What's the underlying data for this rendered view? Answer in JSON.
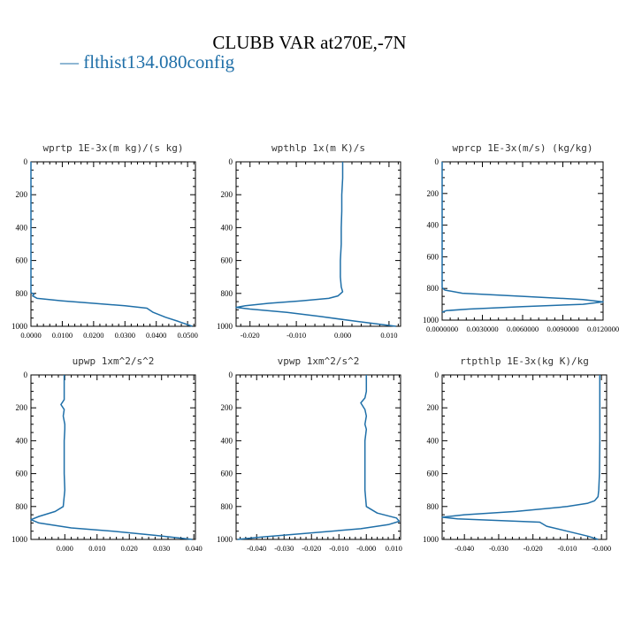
{
  "page": {
    "title": "CLUBB VAR at270E,-7N",
    "legend_label": "flthist134.080config",
    "line_color": "#1f6fa8"
  },
  "chart_data": [
    {
      "type": "line",
      "title": "wprtp  1E-3x(m kg)/(s kg)",
      "xlim": [
        0.0,
        0.0525
      ],
      "ylim": [
        1000,
        0
      ],
      "xticks": [
        0.0,
        0.01,
        0.02,
        0.03,
        0.04,
        0.05
      ],
      "xticklabels": [
        "0.0000",
        "0.0100",
        "0.0200",
        "0.0300",
        "0.0400",
        "0.0500"
      ],
      "yticks": [
        0,
        200,
        400,
        600,
        800,
        1000
      ],
      "series": [
        {
          "x": [
            0.0,
            0.0,
            0.0,
            0.0,
            0.0,
            0.0,
            0.0,
            0.0,
            0.0,
            0.0,
            0.0,
            0.001,
            0.0005,
            0.002,
            0.01,
            0.02,
            0.03,
            0.037,
            0.039,
            0.043,
            0.047,
            0.0515
          ],
          "y": [
            0,
            100,
            200,
            300,
            400,
            500,
            600,
            700,
            750,
            780,
            795,
            805,
            815,
            830,
            845,
            860,
            875,
            890,
            915,
            945,
            970,
            1000
          ]
        }
      ]
    },
    {
      "type": "line",
      "title": "wpthlp  1x(m K)/s",
      "xlim": [
        -0.023,
        0.0125
      ],
      "ylim": [
        1000,
        0
      ],
      "xticks": [
        -0.02,
        -0.01,
        0.0,
        0.01
      ],
      "xticklabels": [
        "-0.020",
        "-0.010",
        "0.000",
        "0.010"
      ],
      "yticks": [
        0,
        200,
        400,
        600,
        800,
        1000
      ],
      "series": [
        {
          "x": [
            0.0,
            0.0,
            -0.0002,
            -0.0002,
            -0.0003,
            -0.0003,
            -0.0005,
            -0.0005,
            -0.0003,
            0.0,
            -0.001,
            -0.003,
            -0.009,
            -0.016,
            -0.021,
            -0.023,
            -0.02,
            -0.012,
            -0.005,
            0.003,
            0.0115
          ],
          "y": [
            0,
            100,
            200,
            300,
            400,
            500,
            600,
            700,
            760,
            790,
            815,
            830,
            845,
            860,
            875,
            885,
            895,
            915,
            940,
            970,
            1000
          ]
        }
      ]
    },
    {
      "type": "line",
      "title": "wprcp  1E-3x(m/s) (kg/kg)",
      "xlim": [
        0.0,
        0.012
      ],
      "ylim": [
        1000,
        0
      ],
      "xticks": [
        0.0,
        0.003,
        0.006,
        0.009,
        0.012
      ],
      "xticklabels": [
        "0.0000000",
        "0.0030000",
        "0.0060000",
        "0.0090000",
        "0.0120000"
      ],
      "yticks": [
        0,
        200,
        400,
        600,
        800,
        1000
      ],
      "series": [
        {
          "x": [
            0.0,
            0.0,
            0.0,
            0.0,
            0.0,
            0.0,
            0.0,
            0.0,
            0.0002,
            0.0015,
            0.006,
            0.0105,
            0.012,
            0.0105,
            0.006,
            0.002,
            0.0003,
            0.0
          ],
          "y": [
            0,
            200,
            400,
            600,
            700,
            760,
            780,
            795,
            810,
            830,
            850,
            870,
            885,
            900,
            915,
            930,
            940,
            950
          ]
        }
      ]
    },
    {
      "type": "line",
      "title": "upwp  1xm^2/s^2",
      "xlim": [
        -0.0105,
        0.0405
      ],
      "ylim": [
        1000,
        0
      ],
      "xticks": [
        0.0,
        0.01,
        0.02,
        0.03,
        0.04
      ],
      "xticklabels": [
        "0.000",
        "0.010",
        "0.020",
        "0.030",
        "0.040"
      ],
      "yticks": [
        0,
        200,
        400,
        600,
        800,
        1000
      ],
      "series": [
        {
          "x": [
            -0.0002,
            -0.0002,
            -0.0002,
            -0.0012,
            -0.0002,
            -0.0005,
            0.0,
            0.0,
            -0.0002,
            -0.0002,
            -0.0002,
            0.0,
            -0.0005,
            -0.003,
            -0.008,
            -0.0105,
            -0.008,
            0.002,
            0.015,
            0.028,
            0.0395
          ],
          "y": [
            0,
            100,
            150,
            180,
            210,
            250,
            300,
            330,
            400,
            500,
            600,
            700,
            800,
            830,
            860,
            880,
            900,
            930,
            950,
            975,
            1000
          ]
        }
      ]
    },
    {
      "type": "line",
      "title": "vpwp  1xm^2/s^2",
      "xlim": [
        -0.0475,
        0.0125
      ],
      "ylim": [
        1000,
        0
      ],
      "xticks": [
        -0.04,
        -0.03,
        -0.02,
        -0.01,
        0.0,
        0.01
      ],
      "xticklabels": [
        "-0.040",
        "-0.030",
        "-0.020",
        "-0.010",
        "-0.000",
        "0.010"
      ],
      "yticks": [
        0,
        200,
        400,
        600,
        800,
        1000
      ],
      "series": [
        {
          "x": [
            0.0,
            0.0,
            -0.0005,
            -0.002,
            -0.0005,
            0.0,
            -0.0005,
            0.0,
            -0.0005,
            -0.0005,
            -0.0005,
            -0.0005,
            0.0,
            0.004,
            0.011,
            0.012,
            0.008,
            -0.002,
            -0.02,
            -0.038,
            -0.047
          ],
          "y": [
            0,
            100,
            140,
            170,
            210,
            250,
            300,
            330,
            400,
            500,
            600,
            700,
            800,
            840,
            870,
            890,
            910,
            935,
            960,
            985,
            1000
          ]
        }
      ]
    },
    {
      "type": "line",
      "title": "rtpthlp  1E-3x(kg K)/kg",
      "xlim": [
        -0.0465,
        0.0015
      ],
      "ylim": [
        1000,
        0
      ],
      "xticks": [
        -0.04,
        -0.03,
        -0.02,
        -0.01,
        0.0
      ],
      "xticklabels": [
        "-0.040",
        "-0.030",
        "-0.020",
        "-0.010",
        "-0.000"
      ],
      "yticks": [
        0,
        200,
        400,
        600,
        800,
        1000
      ],
      "series": [
        {
          "x": [
            -0.0005,
            -0.0005,
            -0.0005,
            -0.0006,
            -0.0008,
            -0.001,
            -0.002,
            -0.004,
            -0.01,
            -0.025,
            -0.04,
            -0.0465,
            -0.042,
            -0.03,
            -0.018,
            -0.016,
            -0.01,
            -0.004,
            -0.001
          ],
          "y": [
            0,
            200,
            400,
            600,
            700,
            740,
            765,
            780,
            800,
            830,
            850,
            865,
            875,
            885,
            895,
            920,
            950,
            980,
            1000
          ]
        }
      ]
    }
  ]
}
